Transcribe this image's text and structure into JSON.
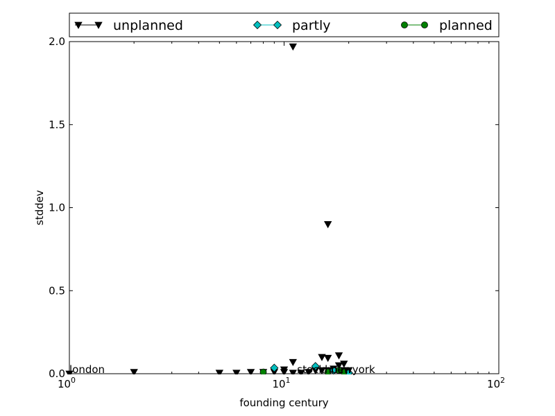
{
  "chart_data": {
    "type": "scatter",
    "xlabel": "founding century",
    "ylabel": "stddev",
    "xscale": "log",
    "xlim": [
      1,
      100
    ],
    "ylim": [
      0,
      2.0
    ],
    "x_ticks": [
      {
        "value": 1,
        "base": "10",
        "exp": "0"
      },
      {
        "value": 10,
        "base": "10",
        "exp": "1"
      },
      {
        "value": 100,
        "base": "10",
        "exp": "2"
      }
    ],
    "y_ticks": [
      {
        "value": 0,
        "label": "0.0"
      },
      {
        "value": 0.5,
        "label": "0.5"
      },
      {
        "value": 1.0,
        "label": "1.0"
      },
      {
        "value": 1.5,
        "label": "1.5"
      },
      {
        "value": 2.0,
        "label": "2.0"
      }
    ],
    "legend_position": "top, above plot, full width",
    "series": [
      {
        "name": "unplanned",
        "marker": "triangle-down",
        "color": "#000000",
        "points": [
          [
            1,
            0.0
          ],
          [
            2,
            0.01
          ],
          [
            5,
            0.005
          ],
          [
            6,
            0.005
          ],
          [
            7,
            0.01
          ],
          [
            8,
            0.01
          ],
          [
            9,
            0.01
          ],
          [
            10,
            0.01
          ],
          [
            10,
            0.025
          ],
          [
            11,
            0.005
          ],
          [
            11,
            0.07
          ],
          [
            11,
            1.97
          ],
          [
            12,
            0.005
          ],
          [
            13,
            0.01
          ],
          [
            14,
            0.02
          ],
          [
            15,
            0.02
          ],
          [
            15,
            0.1
          ],
          [
            16,
            0.02
          ],
          [
            16,
            0.095
          ],
          [
            16,
            0.9
          ],
          [
            17,
            0.03
          ],
          [
            18,
            0.05
          ],
          [
            18,
            0.11
          ],
          [
            19,
            0.02
          ],
          [
            19,
            0.06
          ],
          [
            20,
            0.02
          ]
        ]
      },
      {
        "name": "partly",
        "marker": "diamond",
        "color": "#00bfbf",
        "points": [
          [
            9,
            0.035
          ],
          [
            14,
            0.045
          ],
          [
            17,
            0.02
          ],
          [
            19,
            0.01
          ],
          [
            20,
            0.005
          ]
        ]
      },
      {
        "name": "planned",
        "marker": "circle",
        "color": "#008000",
        "points": [
          [
            8,
            0.01
          ],
          [
            16,
            0.01
          ],
          [
            18,
            0.02
          ],
          [
            19,
            0.01
          ]
        ]
      }
    ],
    "annotations": [
      {
        "text": "london",
        "x": 1,
        "y": 0.0
      },
      {
        "text": "stockholm",
        "x": 11.5,
        "y": 0.0
      },
      {
        "text": "newyork",
        "x": 16.5,
        "y": 0.0
      }
    ]
  }
}
